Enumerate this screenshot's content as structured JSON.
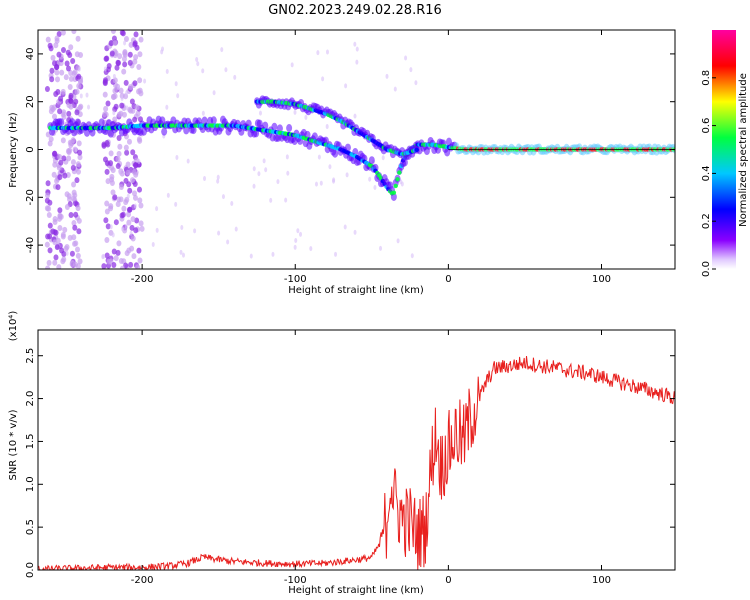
{
  "title": "GN02.2023.249.02.28.R16",
  "chart_data": [
    {
      "type": "heatmap",
      "xlabel": "Height of straight line (km)",
      "ylabel": "Frequency (Hz)",
      "xlim": [
        -268,
        148
      ],
      "ylim": [
        -50,
        50
      ],
      "xticks": [
        -200,
        -100,
        0,
        100
      ],
      "xtick_labels": [
        "-200",
        "-100",
        "0",
        "100"
      ],
      "yticks": [
        -40,
        -20,
        0,
        20,
        40
      ],
      "ytick_labels": [
        "-40",
        "-20",
        "0",
        "20",
        "40"
      ],
      "colorbar": {
        "label": "Normalized spectral amplitude",
        "range": [
          0,
          1
        ],
        "ticks": [
          0.0,
          0.2,
          0.4,
          0.6,
          0.8
        ],
        "tick_labels": [
          "0.0",
          "0.2",
          "0.4",
          "0.6",
          "0.8"
        ],
        "colors": [
          "#ffffff",
          "#8a00ff",
          "#0000ff",
          "#00c8ff",
          "#00ff40",
          "#ffff00",
          "#ff0000",
          "#ff00a0"
        ]
      },
      "ridges": [
        {
          "name": "main",
          "points": [
            [
              -260,
              9
            ],
            [
              -240,
              9
            ],
            [
              -220,
              9
            ],
            [
              -200,
              10
            ],
            [
              -180,
              10
            ],
            [
              -160,
              10
            ],
            [
              -140,
              10
            ],
            [
              -120,
              8
            ],
            [
              -100,
              6
            ],
            [
              -90,
              4
            ],
            [
              -80,
              2
            ],
            [
              -70,
              0
            ],
            [
              -60,
              -3
            ],
            [
              -50,
              -7
            ],
            [
              -45,
              -11
            ],
            [
              -40,
              -16
            ],
            [
              -36,
              -19
            ],
            [
              -30,
              -5
            ],
            [
              -25,
              0
            ],
            [
              -20,
              2
            ],
            [
              -10,
              2
            ],
            [
              0,
              1
            ],
            [
              10,
              0
            ],
            [
              50,
              0
            ],
            [
              100,
              0
            ],
            [
              148,
              0
            ]
          ]
        },
        {
          "name": "upper",
          "points": [
            [
              -125,
              20
            ],
            [
              -115,
              20
            ],
            [
              -100,
              19
            ],
            [
              -90,
              17
            ],
            [
              -80,
              15
            ],
            [
              -70,
              12
            ],
            [
              -60,
              8
            ],
            [
              -50,
              4
            ],
            [
              -40,
              0
            ],
            [
              -30,
              -2
            ],
            [
              -20,
              0
            ]
          ]
        }
      ]
    },
    {
      "type": "line",
      "xlabel": "Height of straight line (km)",
      "ylabel": "SNR (10 * v/v)",
      "yscale_label": "(x10⁴)",
      "xlim": [
        -268,
        148
      ],
      "ylim": [
        0,
        2.8
      ],
      "xticks": [
        -200,
        -100,
        0,
        100
      ],
      "xtick_labels": [
        "-200",
        "-100",
        "0",
        "100"
      ],
      "yticks": [
        0.0,
        0.5,
        1.0,
        1.5,
        2.0,
        2.5
      ],
      "ytick_labels": [
        "0.0",
        "0.5",
        "1.0",
        "1.5",
        "2.0",
        "2.5"
      ],
      "series": [
        {
          "color": "#e8201e",
          "x": [
            -268,
            -240,
            -220,
            -200,
            -180,
            -170,
            -160,
            -150,
            -140,
            -120,
            -100,
            -80,
            -70,
            -60,
            -55,
            -50,
            -45,
            -40,
            -38,
            -35,
            -30,
            -25,
            -20,
            -15,
            -10,
            -8,
            -5,
            0,
            5,
            10,
            15,
            20,
            25,
            30,
            40,
            50,
            60,
            70,
            80,
            90,
            100,
            110,
            120,
            130,
            140,
            148
          ],
          "y": [
            0.01,
            0.02,
            0.03,
            0.03,
            0.05,
            0.08,
            0.15,
            0.12,
            0.1,
            0.08,
            0.07,
            0.08,
            0.1,
            0.12,
            0.13,
            0.15,
            0.3,
            0.6,
            1.1,
            0.8,
            0.6,
            0.55,
            0.4,
            0.5,
            1.4,
            1.6,
            1.2,
            1.4,
            1.6,
            1.5,
            1.8,
            2.0,
            2.2,
            2.35,
            2.38,
            2.42,
            2.38,
            2.36,
            2.32,
            2.3,
            2.25,
            2.2,
            2.15,
            2.1,
            2.05,
            2.0
          ]
        }
      ]
    }
  ]
}
